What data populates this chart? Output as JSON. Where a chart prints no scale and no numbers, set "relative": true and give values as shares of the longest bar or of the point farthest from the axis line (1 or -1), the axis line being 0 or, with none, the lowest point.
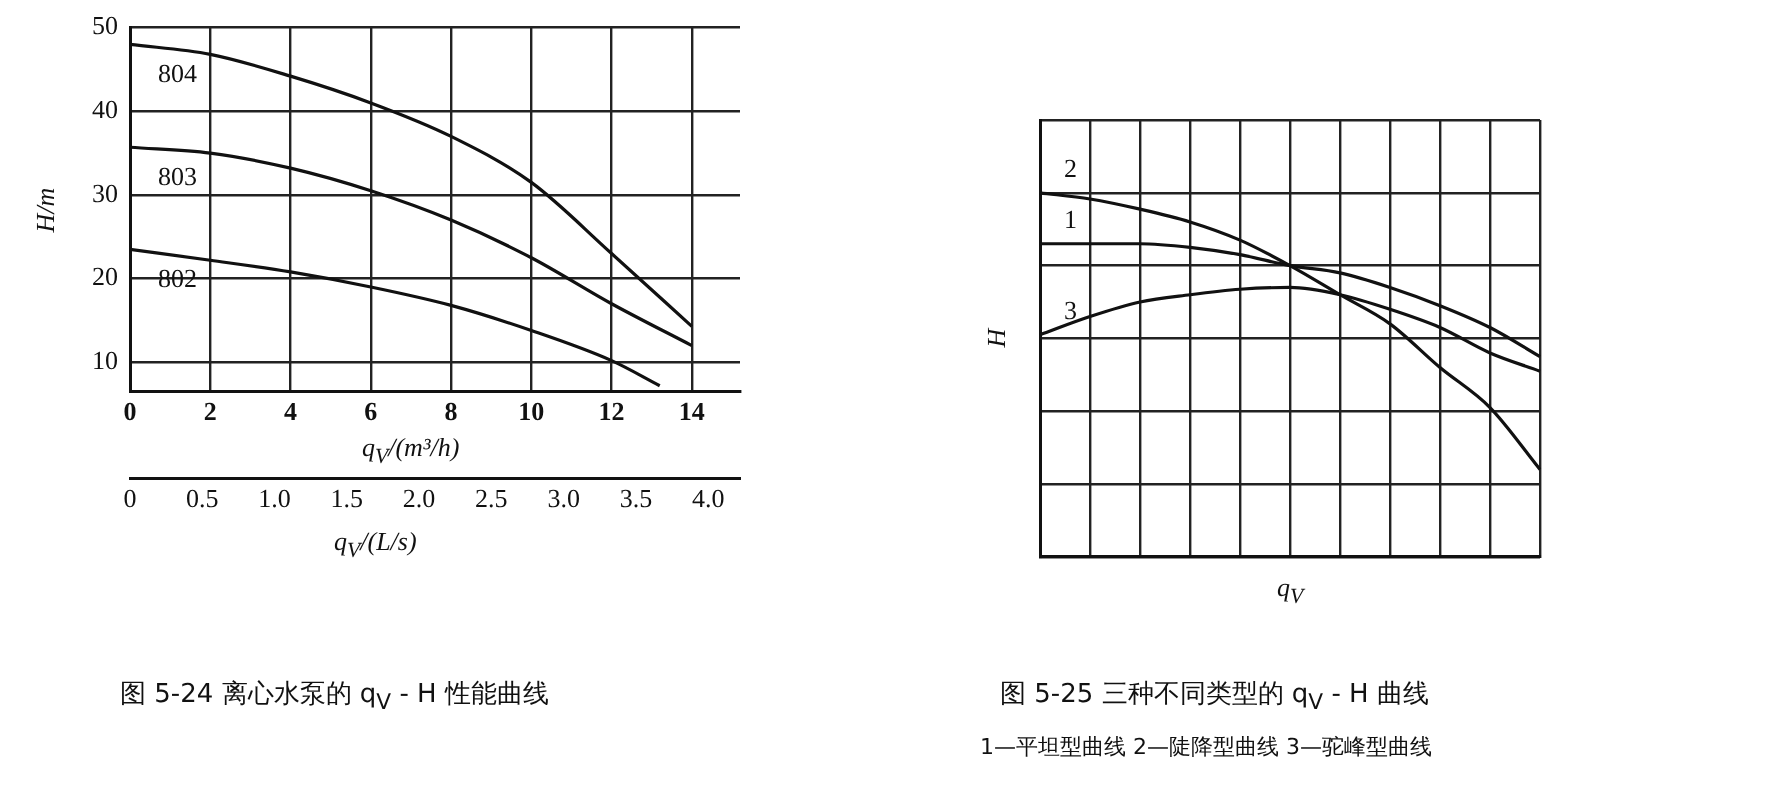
{
  "chart_data": [
    {
      "type": "line",
      "title": "图 5-24 离心水泵的 q$_{V}$ - H 性能曲线",
      "xlabel": "q$_{V}$/(m³/h)",
      "x2label": "q$_{V}$/(L/s)",
      "ylabel": "H/m",
      "xlim": [
        0,
        15.2
      ],
      "xticks": [
        0,
        2,
        4,
        6,
        8,
        10,
        12,
        14
      ],
      "x2lim": [
        0,
        4.22
      ],
      "x2ticks": [
        0,
        0.5,
        {
          "value": 1,
          "label": "1.0"
        },
        1.5,
        {
          "value": 2,
          "label": "2.0"
        },
        2.5,
        {
          "value": 3,
          "label": "3.0"
        },
        3.5,
        {
          "value": 4,
          "label": "4.0"
        }
      ],
      "ylim": [
        6.5,
        50
      ],
      "yticks": [
        10,
        20,
        30,
        40,
        50
      ],
      "grid": true,
      "legend": false,
      "marker": "none",
      "line_style": "solid",
      "series": [
        {
          "name": "804",
          "color": "#111111",
          "x": [
            0,
            2,
            4,
            6,
            8,
            10,
            12,
            14
          ],
          "values": [
            48,
            46.8,
            44.2,
            41,
            37,
            31.5,
            23,
            14.3
          ]
        },
        {
          "name": "803",
          "color": "#111111",
          "x": [
            0,
            2,
            4,
            6,
            8,
            10,
            12,
            14
          ],
          "values": [
            35.7,
            35,
            33.2,
            30.5,
            27,
            22.5,
            17,
            12
          ]
        },
        {
          "name": "802",
          "color": "#111111",
          "x": [
            0,
            2,
            4,
            6,
            8,
            10,
            12,
            13.2
          ],
          "values": [
            23.5,
            22.2,
            20.8,
            19,
            16.8,
            13.8,
            10.2,
            7.2
          ]
        }
      ]
    },
    {
      "type": "line",
      "title": "图 5-25 三种不同类型的 q$_{V}$ - H 曲线",
      "annotations": [
        "1—平坦型曲线 2—陡降型曲线 3—驼峰型曲线"
      ],
      "xlabel": "q$_{V}$",
      "ylabel": "H",
      "relative": true,
      "grid": true,
      "legend": false,
      "marker": "none",
      "line_style": "solid",
      "categories": [
        null,
        null,
        null,
        null,
        null,
        null,
        null,
        null,
        null,
        null,
        null
      ],
      "series": [
        {
          "name": "1",
          "color": "#111111",
          "values": [
            0.86,
            0.86,
            0.86,
            0.85,
            0.83,
            0.8,
            0.78,
            0.74,
            0.69,
            0.63,
            0.55
          ]
        },
        {
          "name": "2",
          "color": "#111111",
          "values": [
            1,
            0.983,
            0.955,
            0.92,
            0.87,
            0.8,
            0.72,
            0.64,
            0.52,
            0.41,
            0.24
          ]
        },
        {
          "name": "3",
          "color": "#111111",
          "values": [
            0.61,
            0.66,
            0.7,
            0.72,
            0.735,
            0.74,
            0.72,
            0.68,
            0.63,
            0.56,
            0.51
          ]
        }
      ]
    }
  ]
}
